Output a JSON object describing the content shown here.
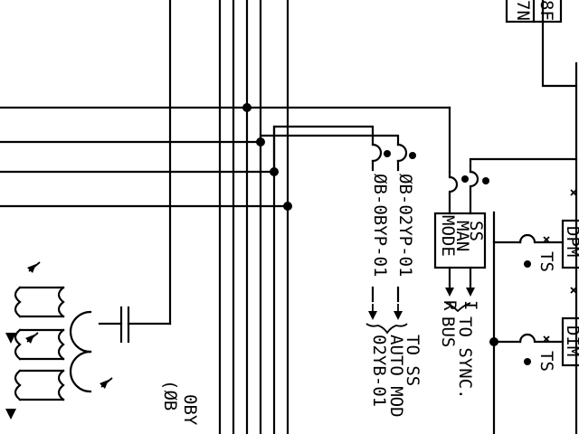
{
  "labels": {
    "cable_left": "ØB-0BYP-01",
    "cable_right": "ØB-02YP-01",
    "to_ss_line1": "TO SS",
    "to_ss_line2": "AUTO MOD",
    "to_ss_line3": "02YB-01",
    "to_sync_line1": "TO SYNC.",
    "to_sync_line2": "BUS",
    "terminal_r": "R",
    "terminal_i": "I",
    "ss_box_line1": "SS",
    "ss_box_line2": "MAN",
    "ss_box_line3": "MODE",
    "ts_upper": "TS",
    "ts_lower": "TS",
    "dpm_label": "DPM",
    "dim_label": "DIM",
    "top_box_line1": "8F",
    "top_box_line2": "7N",
    "bottom_left_line1": "0BY",
    "bottom_left_line2": "(ØB"
  },
  "colors": {
    "ink": "#000000",
    "paper": "#ffffff"
  }
}
